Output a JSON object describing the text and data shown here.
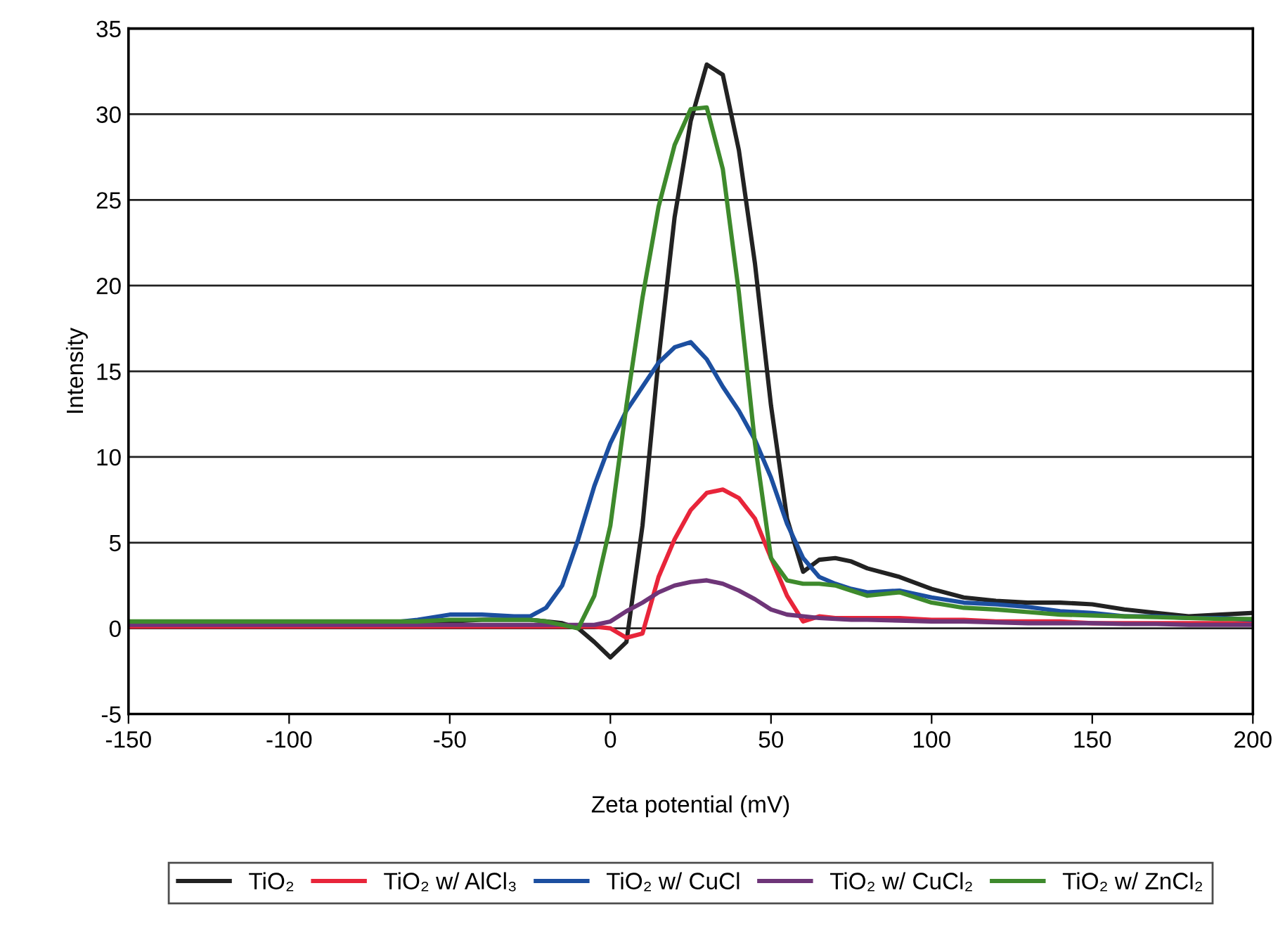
{
  "chart_data": {
    "type": "line",
    "xlabel": "Zeta potential (mV)",
    "ylabel": "Intensity",
    "x": [
      -150,
      -100,
      -70,
      -60,
      -50,
      -40,
      -30,
      -25,
      -20,
      -15,
      -10,
      -5,
      0,
      5,
      10,
      15,
      20,
      25,
      30,
      35,
      40,
      45,
      50,
      55,
      60,
      65,
      70,
      75,
      80,
      90,
      100,
      110,
      120,
      130,
      140,
      150,
      160,
      170,
      180,
      190,
      200
    ],
    "series": [
      {
        "name": "TiO₂",
        "color": "#222222",
        "values": [
          0.3,
          0.3,
          0.3,
          0.3,
          0.4,
          0.5,
          0.5,
          0.5,
          0.4,
          0.3,
          0,
          -0.8,
          -1.7,
          -0.8,
          6,
          15.7,
          24,
          29.6,
          32.9,
          32.3,
          27.9,
          21.3,
          13,
          6.4,
          3.3,
          4.0,
          4.1,
          3.9,
          3.5,
          3.0,
          2.3,
          1.8,
          1.6,
          1.5,
          1.5,
          1.4,
          1.1,
          0.9,
          0.7,
          0.8,
          0.9
        ]
      },
      {
        "name": "TiO₂ w/ AlCl₃",
        "color": "#e8253a",
        "values": [
          0.1,
          0.1,
          0.1,
          0.1,
          0.1,
          0.1,
          0.1,
          0.1,
          0.1,
          0.1,
          0.1,
          0.1,
          0,
          -0.55,
          -0.3,
          3.0,
          5.2,
          6.9,
          7.9,
          8.1,
          7.6,
          6.4,
          4.1,
          1.9,
          0.4,
          0.7,
          0.6,
          0.6,
          0.6,
          0.6,
          0.5,
          0.5,
          0.4,
          0.4,
          0.4,
          0.3,
          0.3,
          0.3,
          0.3,
          0.3,
          0.3
        ]
      },
      {
        "name": "TiO₂ w/ CuCl",
        "color": "#1c4fa0",
        "values": [
          0.3,
          0.3,
          0.3,
          0.5,
          0.8,
          0.8,
          0.7,
          0.7,
          1.2,
          2.5,
          5.2,
          8.3,
          10.8,
          12.7,
          14.1,
          15.5,
          16.4,
          16.7,
          15.7,
          14.1,
          12.7,
          11.0,
          8.8,
          6.1,
          4.1,
          3.0,
          2.6,
          2.3,
          2.1,
          2.2,
          1.8,
          1.5,
          1.4,
          1.25,
          1.0,
          0.9,
          0.7,
          0.7,
          0.6,
          0.6,
          0.5
        ]
      },
      {
        "name": "TiO₂ w/ CuCl₂",
        "color": "#6e3578",
        "values": [
          0.2,
          0.2,
          0.2,
          0.2,
          0.2,
          0.2,
          0.2,
          0.2,
          0.2,
          0.2,
          0.2,
          0.2,
          0.4,
          1.0,
          1.5,
          2.1,
          2.5,
          2.7,
          2.8,
          2.6,
          2.2,
          1.7,
          1.1,
          0.8,
          0.7,
          0.6,
          0.55,
          0.5,
          0.5,
          0.45,
          0.4,
          0.4,
          0.35,
          0.3,
          0.3,
          0.3,
          0.25,
          0.25,
          0.2,
          0.2,
          0.2
        ]
      },
      {
        "name": "TiO₂ w/ ZnCl₂",
        "color": "#3e8a2c",
        "values": [
          0.4,
          0.4,
          0.4,
          0.4,
          0.5,
          0.5,
          0.5,
          0.5,
          0.4,
          0.2,
          0,
          1.9,
          6,
          13,
          19.3,
          24.6,
          28.2,
          30.3,
          30.4,
          26.8,
          19.6,
          10.8,
          4.1,
          2.8,
          2.6,
          2.6,
          2.5,
          2.2,
          1.9,
          2.1,
          1.5,
          1.2,
          1.1,
          0.95,
          0.8,
          0.75,
          0.7,
          0.65,
          0.6,
          0.55,
          0.55
        ]
      }
    ],
    "xlim": [
      -150,
      200
    ],
    "xticks": [
      -150,
      -100,
      -50,
      0,
      50,
      100,
      150,
      200
    ],
    "ylim": [
      -5,
      35
    ],
    "yticks": [
      -5,
      0,
      5,
      10,
      15,
      20,
      25,
      30,
      35
    ],
    "grid": "y",
    "legend": "bottom",
    "marker": "none",
    "line_style": "solid"
  }
}
